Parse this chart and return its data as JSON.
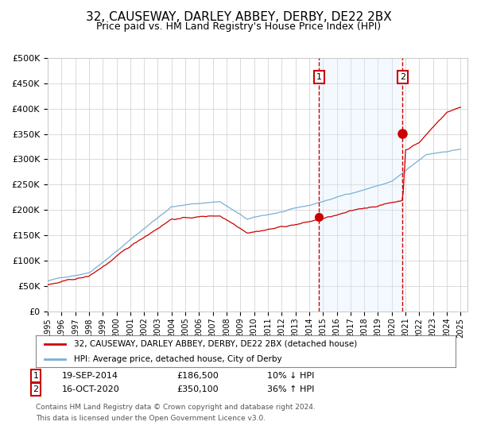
{
  "title": "32, CAUSEWAY, DARLEY ABBEY, DERBY, DE22 2BX",
  "subtitle": "Price paid vs. HM Land Registry's House Price Index (HPI)",
  "title_fontsize": 11,
  "subtitle_fontsize": 9,
  "ylabel_ticks": [
    "£0",
    "£50K",
    "£100K",
    "£150K",
    "£200K",
    "£250K",
    "£300K",
    "£350K",
    "£400K",
    "£450K",
    "£500K"
  ],
  "ytick_values": [
    0,
    50000,
    100000,
    150000,
    200000,
    250000,
    300000,
    350000,
    400000,
    450000,
    500000
  ],
  "ylim": [
    0,
    500000
  ],
  "sale1_x": 2014.72,
  "sale1_price": 186500,
  "sale2_x": 2020.79,
  "sale2_price": 350100,
  "legend_red": "32, CAUSEWAY, DARLEY ABBEY, DERBY, DE22 2BX (detached house)",
  "legend_blue": "HPI: Average price, detached house, City of Derby",
  "footnote_line1": "Contains HM Land Registry data © Crown copyright and database right 2024.",
  "footnote_line2": "This data is licensed under the Open Government Licence v3.0.",
  "hpi_color": "#7ab0d4",
  "price_color": "#cc0000",
  "marker_color": "#cc0000",
  "vline_color": "#cc0000",
  "shade_color": "#ddeeff",
  "background_color": "#ffffff",
  "grid_color": "#cccccc",
  "annotation_box_color": "#cc0000"
}
